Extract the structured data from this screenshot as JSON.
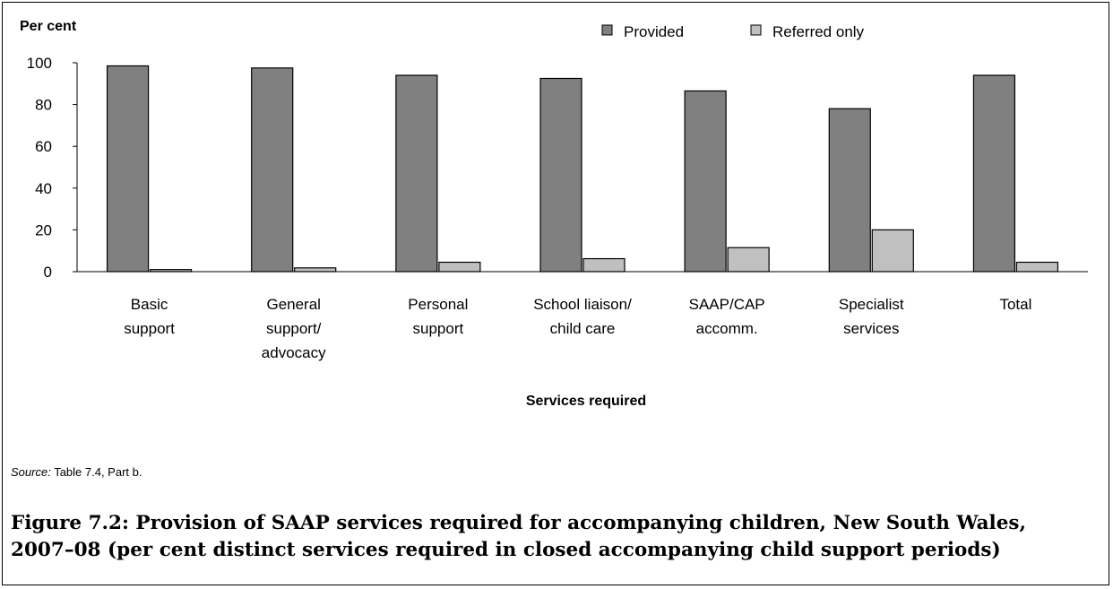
{
  "chart_data": {
    "type": "bar",
    "ylabel": "Per cent",
    "xlabel": "Services required",
    "ylim": [
      0,
      100
    ],
    "yticks": [
      0,
      20,
      40,
      60,
      80,
      100
    ],
    "grid": false,
    "legend_position": "top-right",
    "categories": [
      [
        "Basic",
        "support"
      ],
      [
        "General",
        "support/",
        "advocacy"
      ],
      [
        "Personal",
        "support"
      ],
      [
        "School liaison/",
        "child care"
      ],
      [
        "SAAP/CAP",
        "accomm."
      ],
      [
        "Specialist",
        "services"
      ],
      [
        "Total"
      ]
    ],
    "series": [
      {
        "name": "Provided",
        "color": "#808080",
        "values": [
          98.5,
          97.5,
          94,
          92.5,
          86.5,
          78,
          94
        ]
      },
      {
        "name": "Referred only",
        "color": "#c0c0c0",
        "values": [
          1,
          1.8,
          4.5,
          6.2,
          11.5,
          20,
          4.5
        ]
      }
    ]
  },
  "source": {
    "label": "Source:",
    "text": " Table 7.4, Part b."
  },
  "caption": "Figure 7.2: Provision of SAAP services required for accompanying children, New South Wales, 2007–08 (per cent distinct services required in closed accompanying child support periods)"
}
